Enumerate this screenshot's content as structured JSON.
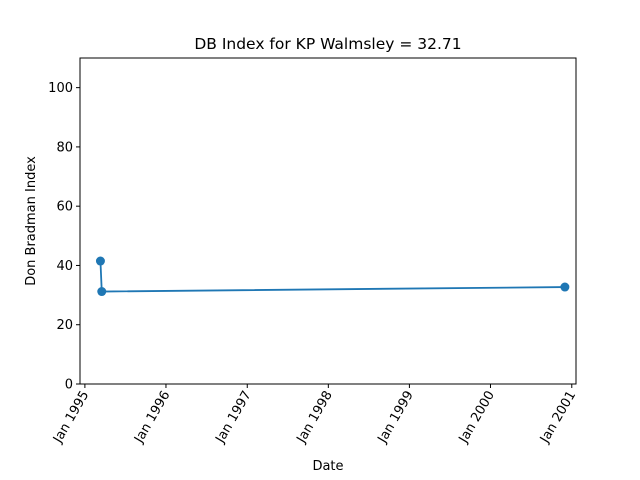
{
  "chart_data": {
    "type": "line",
    "title": "DB Index for KP Walmsley = 32.71",
    "xlabel": "Date",
    "ylabel": "Don Bradman Index",
    "ylim": [
      0,
      110
    ],
    "xlim": [
      "1994-12-10",
      "2001-01-20"
    ],
    "yticks": [
      0,
      20,
      40,
      60,
      80,
      100
    ],
    "xticks": [
      {
        "date": "1995-01-01",
        "label": "Jan 1995"
      },
      {
        "date": "1996-01-01",
        "label": "Jan 1996"
      },
      {
        "date": "1997-01-01",
        "label": "Jan 1997"
      },
      {
        "date": "1998-01-01",
        "label": "Jan 1998"
      },
      {
        "date": "1999-01-01",
        "label": "Jan 1999"
      },
      {
        "date": "2000-01-01",
        "label": "Jan 2000"
      },
      {
        "date": "2001-01-01",
        "label": "Jan 2001"
      }
    ],
    "color": "#1f77b4",
    "grid": false,
    "series": [
      {
        "x": [
          "1995-03-12",
          "1995-03-18",
          "2000-12-01"
        ],
        "y": [
          41.5,
          31.2,
          32.71
        ]
      }
    ]
  }
}
